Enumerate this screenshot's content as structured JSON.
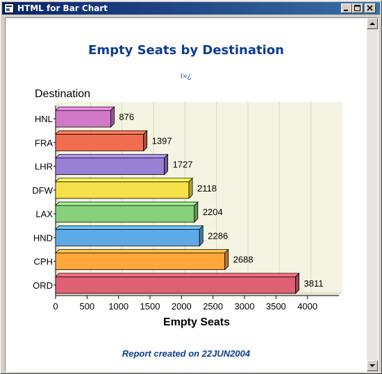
{
  "window": {
    "title": "HTML for Bar Chart"
  },
  "report": {
    "title": "Empty Seats by Destination",
    "garbled_text": "ï»¿",
    "footnote": "Report created on 22JUN2004"
  },
  "chart_data": {
    "type": "bar",
    "orientation": "horizontal",
    "categories": [
      "HNL",
      "FRA",
      "LHR",
      "DFW",
      "LAX",
      "HND",
      "CPH",
      "ORD"
    ],
    "values": [
      876,
      1397,
      1727,
      2118,
      2204,
      2286,
      2688,
      3811
    ],
    "colors": [
      "#d079c8",
      "#f26c4f",
      "#9a7fd6",
      "#f7e14b",
      "#86d07a",
      "#5ea9e8",
      "#ffa63d",
      "#e05f73"
    ],
    "title": "Empty Seats by Destination",
    "ylabel": "Destination",
    "xlabel": "Empty Seats",
    "xlim": [
      0,
      4500
    ],
    "xticks": [
      0,
      500,
      1000,
      1500,
      2000,
      2500,
      3000,
      3500,
      4000
    ],
    "grid": true,
    "plot_background": "#f5f3e1",
    "show_value_labels": true
  }
}
